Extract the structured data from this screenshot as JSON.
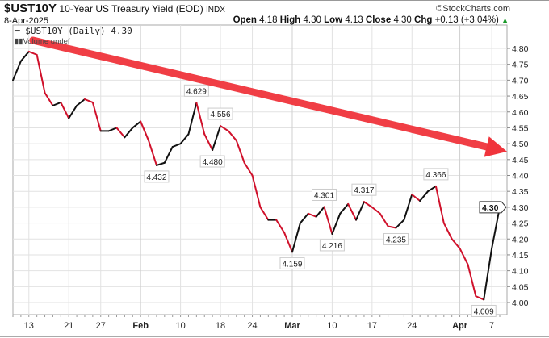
{
  "header": {
    "symbol": "$UST10Y",
    "description": "10-Year US Treasury Yield (EOD)",
    "exchange": "INDX",
    "site": "©StockCharts.com",
    "date": "8-Apr-2025",
    "open_label": "Open",
    "open": "4.18",
    "high_label": "High",
    "high": "4.30",
    "low_label": "Low",
    "low": "4.13",
    "close_label": "Close",
    "close": "4.30",
    "chg_label": "Chg",
    "chg": "+0.13 (+3.04%)",
    "chg_icon": "triangle-up-icon"
  },
  "legend": {
    "series": "$UST10Y (Daily) 4.30",
    "volume": "Volume undef"
  },
  "colors": {
    "up": "#111111",
    "down": "#d0112b",
    "arrow": "#f0343c",
    "grid": "#e2e2e2"
  },
  "chart_data": {
    "type": "line",
    "ylim": [
      4.0,
      4.8
    ],
    "yticks": [
      "4.00",
      "4.05",
      "4.10",
      "4.15",
      "4.20",
      "4.25",
      "4.30",
      "4.35",
      "4.40",
      "4.45",
      "4.50",
      "4.55",
      "4.60",
      "4.65",
      "4.70",
      "4.75",
      "4.80"
    ],
    "grid": true,
    "last_value_tag": "4.30",
    "x": [
      "2025-01-08",
      "2025-01-10",
      "2025-01-13",
      "2025-01-14",
      "2025-01-15",
      "2025-01-16",
      "2025-01-17",
      "2025-01-21",
      "2025-01-22",
      "2025-01-23",
      "2025-01-24",
      "2025-01-27",
      "2025-01-28",
      "2025-01-29",
      "2025-01-30",
      "2025-01-31",
      "2025-02-03",
      "2025-02-04",
      "2025-02-05",
      "2025-02-06",
      "2025-02-07",
      "2025-02-10",
      "2025-02-11",
      "2025-02-12",
      "2025-02-13",
      "2025-02-14",
      "2025-02-18",
      "2025-02-19",
      "2025-02-20",
      "2025-02-21",
      "2025-02-24",
      "2025-02-25",
      "2025-02-26",
      "2025-02-27",
      "2025-02-28",
      "2025-03-03",
      "2025-03-04",
      "2025-03-05",
      "2025-03-06",
      "2025-03-07",
      "2025-03-10",
      "2025-03-11",
      "2025-03-12",
      "2025-03-13",
      "2025-03-14",
      "2025-03-17",
      "2025-03-18",
      "2025-03-19",
      "2025-03-20",
      "2025-03-21",
      "2025-03-24",
      "2025-03-25",
      "2025-03-26",
      "2025-03-27",
      "2025-03-28",
      "2025-03-31",
      "2025-04-01",
      "2025-04-02",
      "2025-04-03",
      "2025-04-04",
      "2025-04-07",
      "2025-04-08"
    ],
    "values": [
      4.7,
      4.76,
      4.79,
      4.78,
      4.66,
      4.62,
      4.63,
      4.58,
      4.62,
      4.64,
      4.63,
      4.54,
      4.54,
      4.55,
      4.52,
      4.55,
      4.57,
      4.51,
      4.432,
      4.44,
      4.49,
      4.5,
      4.53,
      4.629,
      4.53,
      4.48,
      4.556,
      4.54,
      4.51,
      4.44,
      4.4,
      4.3,
      4.26,
      4.26,
      4.22,
      4.159,
      4.25,
      4.28,
      4.27,
      4.301,
      4.216,
      4.28,
      4.31,
      4.26,
      4.317,
      4.3,
      4.28,
      4.24,
      4.235,
      4.26,
      4.34,
      4.32,
      4.35,
      4.366,
      4.25,
      4.2,
      4.17,
      4.12,
      4.02,
      4.009,
      4.17,
      4.3
    ],
    "annotations": [
      {
        "date": "2025-02-05",
        "text": "4.432",
        "pos": "below"
      },
      {
        "date": "2025-02-12",
        "text": "4.629",
        "pos": "above"
      },
      {
        "date": "2025-02-14",
        "text": "4.480",
        "pos": "below"
      },
      {
        "date": "2025-02-18",
        "text": "4.556",
        "pos": "above"
      },
      {
        "date": "2025-03-03",
        "text": "4.159",
        "pos": "below"
      },
      {
        "date": "2025-03-07",
        "text": "4.301",
        "pos": "above"
      },
      {
        "date": "2025-03-10",
        "text": "4.216",
        "pos": "below"
      },
      {
        "date": "2025-03-14",
        "text": "4.317",
        "pos": "above"
      },
      {
        "date": "2025-03-20",
        "text": "4.235",
        "pos": "below"
      },
      {
        "date": "2025-03-27",
        "text": "4.366",
        "pos": "above"
      },
      {
        "date": "2025-04-04",
        "text": "4.009",
        "pos": "below"
      }
    ],
    "xticks": [
      {
        "date": "2025-01-13",
        "label": "13",
        "bold": false
      },
      {
        "date": "2025-01-21",
        "label": "21",
        "bold": false
      },
      {
        "date": "2025-01-27",
        "label": "27",
        "bold": false
      },
      {
        "date": "2025-02-03",
        "label": "Feb",
        "bold": true
      },
      {
        "date": "2025-02-10",
        "label": "10",
        "bold": false
      },
      {
        "date": "2025-02-18",
        "label": "18",
        "bold": false
      },
      {
        "date": "2025-02-24",
        "label": "24",
        "bold": false
      },
      {
        "date": "2025-03-03",
        "label": "Mar",
        "bold": true
      },
      {
        "date": "2025-03-10",
        "label": "10",
        "bold": false
      },
      {
        "date": "2025-03-17",
        "label": "17",
        "bold": false
      },
      {
        "date": "2025-03-24",
        "label": "24",
        "bold": false
      },
      {
        "date": "2025-04-01",
        "label": "Apr",
        "bold": true
      },
      {
        "date": "2025-04-07",
        "label": "7",
        "bold": false
      }
    ],
    "trend_arrow": {
      "from_date": "2025-01-13",
      "from_value": 4.8,
      "to_date": "2025-04-08",
      "to_value": 4.46,
      "direction": "down"
    }
  }
}
